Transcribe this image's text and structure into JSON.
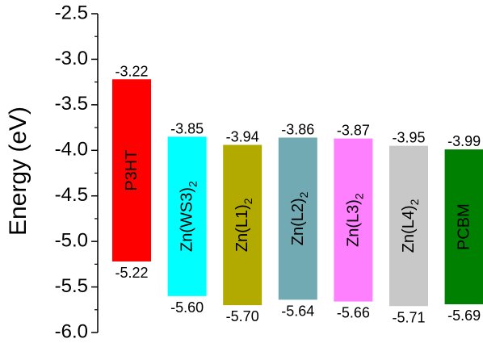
{
  "chart_data": {
    "type": "bar",
    "subtype": "floating-range",
    "ylabel": "Energy (eV)",
    "ylim": [
      -6.0,
      -2.5
    ],
    "yticks": [
      "-2.5",
      "-3.0",
      "-3.5",
      "-4.0",
      "-4.5",
      "-5.0",
      "-5.5",
      "-6.0"
    ],
    "grid": false,
    "bars": [
      {
        "label": "P3HT",
        "sub": "",
        "top": -3.22,
        "bottom": -5.22,
        "top_label": "-3.22",
        "bottom_label": "-5.22",
        "color": "#ff0000",
        "text_color": "#000000"
      },
      {
        "label": "Zn(WS3)",
        "sub": "2",
        "top": -3.85,
        "bottom": -5.6,
        "top_label": "-3.85",
        "bottom_label": "-5.60",
        "color": "#00ffff",
        "text_color": "#000000"
      },
      {
        "label": "Zn(L1)",
        "sub": "2",
        "top": -3.94,
        "bottom": -5.7,
        "top_label": "-3.94",
        "bottom_label": "-5.70",
        "color": "#b3aa00",
        "text_color": "#000000"
      },
      {
        "label": "Zn(L2)",
        "sub": "2",
        "top": -3.86,
        "bottom": -5.64,
        "top_label": "-3.86",
        "bottom_label": "-5.64",
        "color": "#71aab3",
        "text_color": "#000000"
      },
      {
        "label": "Zn(L3)",
        "sub": "2",
        "top": -3.87,
        "bottom": -5.66,
        "top_label": "-3.87",
        "bottom_label": "-5.66",
        "color": "#ff80ff",
        "text_color": "#000000"
      },
      {
        "label": "Zn(L4)",
        "sub": "2",
        "top": -3.95,
        "bottom": -5.71,
        "top_label": "-3.95",
        "bottom_label": "-5.71",
        "color": "#c8c8c8",
        "text_color": "#000000"
      },
      {
        "label": "PCBM",
        "sub": "",
        "top": -3.99,
        "bottom": -5.69,
        "top_label": "-3.99",
        "bottom_label": "-5.69",
        "color": "#008000",
        "text_color": "#000000"
      }
    ]
  }
}
